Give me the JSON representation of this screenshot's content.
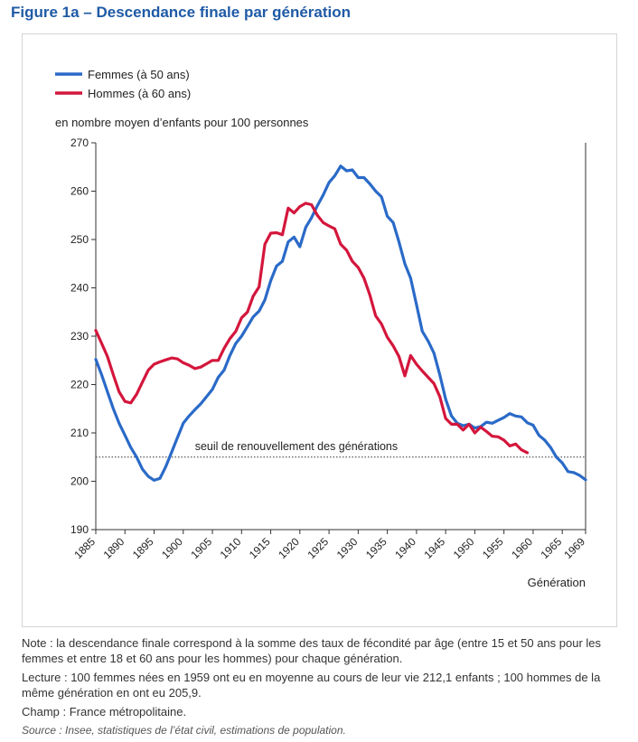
{
  "title": "Figure 1a – Descendance finale par génération",
  "notes": {
    "note": "Note : la descendance finale correspond à la somme des taux de fécondité par âge (entre 15 et 50 ans pour les femmes et entre 18 et 60 ans pour les hommes) pour chaque génération.",
    "lecture": "Lecture : 100 femmes nées en 1959 ont eu en moyenne au cours de leur vie 212,1 enfants ; 100 hommes de la même génération en ont eu 205,9.",
    "champ": "Champ : France métropolitaine.",
    "source": "Source : Insee, statistiques de l’état civil, estimations de population."
  },
  "chart_data": {
    "type": "line",
    "title": "Figure 1a – Descendance finale par génération",
    "ylabel": "en nombre moyen d’enfants pour 100 personnes",
    "xlabel": "Génération",
    "xlim": [
      1885,
      1969
    ],
    "ylim": [
      190,
      270
    ],
    "xticks": [
      "1885",
      "1890",
      "1895",
      "1900",
      "1905",
      "1910",
      "1915",
      "1920",
      "1925",
      "1930",
      "1935",
      "1940",
      "1945",
      "1950",
      "1955",
      "1960",
      "1965",
      "1969"
    ],
    "yticks": [
      "190",
      "200",
      "210",
      "220",
      "230",
      "240",
      "250",
      "260",
      "270"
    ],
    "grid": false,
    "legend": "top-left",
    "reference_line": {
      "y": 205,
      "label": "seuil de renouvellement des générations"
    },
    "series": [
      {
        "name": "Femmes (à 50 ans)",
        "color": "#2a6ac8",
        "points": [
          [
            1885,
            225.2
          ],
          [
            1886,
            222
          ],
          [
            1887,
            218.5
          ],
          [
            1888,
            215
          ],
          [
            1889,
            212
          ],
          [
            1890,
            209.5
          ],
          [
            1891,
            207
          ],
          [
            1892,
            205
          ],
          [
            1893,
            202.5
          ],
          [
            1894,
            201
          ],
          [
            1895,
            200.2
          ],
          [
            1896,
            200.6
          ],
          [
            1897,
            203
          ],
          [
            1898,
            206
          ],
          [
            1899,
            209
          ],
          [
            1900,
            212
          ],
          [
            1901,
            213.5
          ],
          [
            1902,
            214.8
          ],
          [
            1903,
            216
          ],
          [
            1904,
            217.5
          ],
          [
            1905,
            219
          ],
          [
            1906,
            221.5
          ],
          [
            1907,
            223
          ],
          [
            1908,
            226
          ],
          [
            1909,
            228.5
          ],
          [
            1910,
            230
          ],
          [
            1911,
            232
          ],
          [
            1912,
            234
          ],
          [
            1913,
            235.2
          ],
          [
            1914,
            237.5
          ],
          [
            1915,
            241.5
          ],
          [
            1916,
            244.5
          ],
          [
            1917,
            245.5
          ],
          [
            1918,
            249.5
          ],
          [
            1919,
            250.5
          ],
          [
            1920,
            248.5
          ],
          [
            1921,
            252.5
          ],
          [
            1922,
            254.5
          ],
          [
            1923,
            257
          ],
          [
            1924,
            259.2
          ],
          [
            1925,
            261.8
          ],
          [
            1926,
            263.2
          ],
          [
            1927,
            265.2
          ],
          [
            1928,
            264.2
          ],
          [
            1929,
            264.4
          ],
          [
            1930,
            262.8
          ],
          [
            1931,
            262.8
          ],
          [
            1932,
            261.5
          ],
          [
            1933,
            260
          ],
          [
            1934,
            258.8
          ],
          [
            1935,
            254.8
          ],
          [
            1936,
            253.5
          ],
          [
            1937,
            249.5
          ],
          [
            1938,
            245
          ],
          [
            1939,
            242
          ],
          [
            1940,
            236.5
          ],
          [
            1941,
            231
          ],
          [
            1942,
            229
          ],
          [
            1943,
            226.5
          ],
          [
            1944,
            222
          ],
          [
            1945,
            217
          ],
          [
            1946,
            213.5
          ],
          [
            1947,
            212
          ],
          [
            1948,
            211.5
          ],
          [
            1949,
            211.8
          ],
          [
            1950,
            211
          ],
          [
            1951,
            211.3
          ],
          [
            1952,
            212.2
          ],
          [
            1953,
            212
          ],
          [
            1954,
            212.6
          ],
          [
            1955,
            213.2
          ],
          [
            1956,
            214
          ],
          [
            1957,
            213.5
          ],
          [
            1958,
            213.3
          ],
          [
            1959,
            212.1
          ],
          [
            1960,
            211.6
          ],
          [
            1961,
            209.5
          ],
          [
            1962,
            208.5
          ],
          [
            1963,
            207
          ],
          [
            1964,
            205
          ],
          [
            1965,
            203.8
          ],
          [
            1966,
            202
          ],
          [
            1967,
            201.8
          ],
          [
            1968,
            201.2
          ],
          [
            1969,
            200.3
          ]
        ]
      },
      {
        "name": "Hommes (à 60 ans)",
        "color": "#d4163c",
        "points": [
          [
            1885,
            231.2
          ],
          [
            1886,
            228.5
          ],
          [
            1887,
            225.8
          ],
          [
            1888,
            222
          ],
          [
            1889,
            218.5
          ],
          [
            1890,
            216.5
          ],
          [
            1891,
            216.2
          ],
          [
            1892,
            218
          ],
          [
            1893,
            220.5
          ],
          [
            1894,
            223
          ],
          [
            1895,
            224.2
          ],
          [
            1896,
            224.7
          ],
          [
            1897,
            225.1
          ],
          [
            1898,
            225.5
          ],
          [
            1899,
            225.3
          ],
          [
            1900,
            224.5
          ],
          [
            1901,
            224
          ],
          [
            1902,
            223.3
          ],
          [
            1903,
            223.6
          ],
          [
            1904,
            224.3
          ],
          [
            1905,
            225
          ],
          [
            1906,
            225
          ],
          [
            1907,
            227.5
          ],
          [
            1908,
            229.5
          ],
          [
            1909,
            231
          ],
          [
            1910,
            233.8
          ],
          [
            1911,
            235
          ],
          [
            1912,
            238.3
          ],
          [
            1913,
            240.2
          ],
          [
            1914,
            249
          ],
          [
            1915,
            251.3
          ],
          [
            1916,
            251.4
          ],
          [
            1917,
            251
          ],
          [
            1918,
            256.5
          ],
          [
            1919,
            255.5
          ],
          [
            1920,
            256.8
          ],
          [
            1921,
            257.5
          ],
          [
            1922,
            257.2
          ],
          [
            1923,
            255
          ],
          [
            1924,
            253.5
          ],
          [
            1925,
            252.8
          ],
          [
            1926,
            252.2
          ],
          [
            1927,
            249
          ],
          [
            1928,
            247.8
          ],
          [
            1929,
            245.5
          ],
          [
            1930,
            244.2
          ],
          [
            1931,
            242
          ],
          [
            1932,
            238.5
          ],
          [
            1933,
            234.2
          ],
          [
            1934,
            232.5
          ],
          [
            1935,
            229.8
          ],
          [
            1936,
            228
          ],
          [
            1937,
            225.8
          ],
          [
            1938,
            221.8
          ],
          [
            1939,
            226
          ],
          [
            1940,
            224.2
          ],
          [
            1941,
            222.8
          ],
          [
            1942,
            221.5
          ],
          [
            1943,
            220.2
          ],
          [
            1944,
            217.5
          ],
          [
            1945,
            213
          ],
          [
            1946,
            211.8
          ],
          [
            1947,
            211.8
          ],
          [
            1948,
            210.6
          ],
          [
            1949,
            211.8
          ],
          [
            1950,
            210
          ],
          [
            1951,
            211.2
          ],
          [
            1952,
            210.3
          ],
          [
            1953,
            209.3
          ],
          [
            1954,
            209.2
          ],
          [
            1955,
            208.5
          ],
          [
            1956,
            207.3
          ],
          [
            1957,
            207.7
          ],
          [
            1958,
            206.5
          ],
          [
            1959,
            205.9
          ]
        ]
      }
    ]
  }
}
